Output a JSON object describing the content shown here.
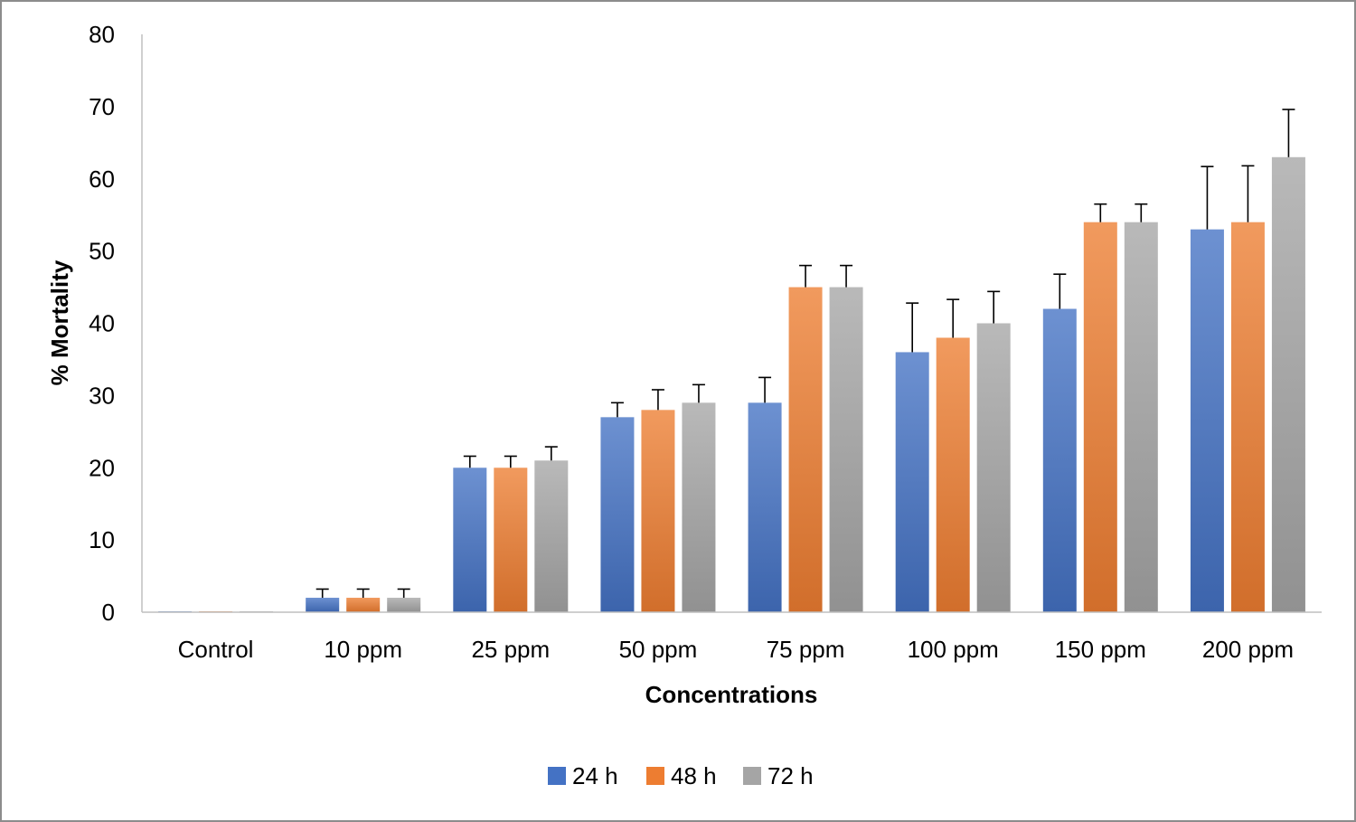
{
  "chart_data": {
    "type": "bar",
    "title": "",
    "xlabel": "Concentrations",
    "ylabel": "% Mortality",
    "ylim": [
      0,
      80
    ],
    "yticks": [
      "0",
      "10",
      "20",
      "30",
      "40",
      "50",
      "60",
      "70",
      "80"
    ],
    "categories": [
      "Control",
      "10 ppm",
      "25 ppm",
      "50 ppm",
      "75 ppm",
      "100 ppm",
      "150 ppm",
      "200 ppm"
    ],
    "series": [
      {
        "name": "24 h",
        "color": "#4472c4",
        "values": [
          0,
          2,
          20,
          27,
          29,
          36,
          42,
          53
        ],
        "errors": [
          0,
          1.2,
          1.6,
          2.0,
          3.5,
          6.8,
          4.8,
          8.7
        ]
      },
      {
        "name": "48 h",
        "color": "#ed7d31",
        "values": [
          0,
          2,
          20,
          28,
          45,
          38,
          54,
          54
        ],
        "errors": [
          0,
          1.2,
          1.6,
          2.8,
          3.0,
          5.3,
          2.5,
          7.8
        ]
      },
      {
        "name": "72 h",
        "color": "#a5a5a5",
        "values": [
          0,
          2,
          21,
          29,
          45,
          40,
          54,
          63
        ],
        "errors": [
          0,
          1.2,
          1.9,
          2.5,
          3.0,
          4.4,
          2.5,
          6.6
        ]
      }
    ],
    "legend_position": "bottom",
    "grid": false
  }
}
